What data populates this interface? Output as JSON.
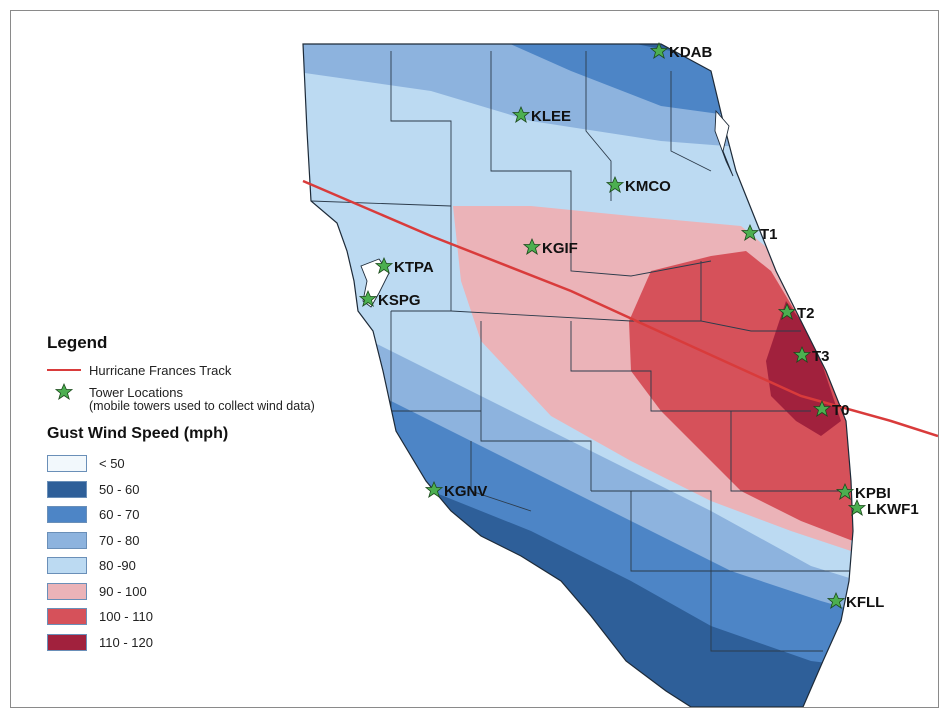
{
  "legend": {
    "title": "Legend",
    "track_label": "Hurricane Frances Track",
    "tower_label": "Tower Locations",
    "tower_note": "(mobile towers used to collect wind data)",
    "gust_title": "Gust Wind Speed (mph)",
    "classes": [
      {
        "label": "< 50",
        "color": "#f2f8fc"
      },
      {
        "label": "50 - 60",
        "color": "#2e5f99"
      },
      {
        "label": "60 - 70",
        "color": "#4d85c6"
      },
      {
        "label": "70 - 80",
        "color": "#8db3de"
      },
      {
        "label": "80 -90",
        "color": "#bcdaf2"
      },
      {
        "label": "90 - 100",
        "color": "#ebb3b8"
      },
      {
        "label": "100 - 110",
        "color": "#d6515a"
      },
      {
        "label": "110 - 120",
        "color": "#a1213d"
      }
    ]
  },
  "colors": {
    "track": "#d93b3b",
    "star_fill": "#4caf50",
    "land_blue_pale": "#bcdaf2",
    "land_blue_light": "#8db3de",
    "land_blue_mid": "#4d85c6",
    "land_blue_dark": "#2e5f99",
    "red_pale": "#ebb3b8",
    "red_mid": "#d6515a",
    "red_dark": "#a1213d"
  },
  "towers": {
    "kdab": "KDAB",
    "klee": "KLEE",
    "kmco": "KMCO",
    "t1": "T1",
    "kgif": "KGIF",
    "ktpa": "KTPA",
    "kspg": "KSPG",
    "t2": "T2",
    "t3": "T3",
    "t0": "T0",
    "kpbi": "KPBI",
    "lkwf1": "LKWF1",
    "kgnv": "KGNV",
    "kfll": "KFLL"
  }
}
